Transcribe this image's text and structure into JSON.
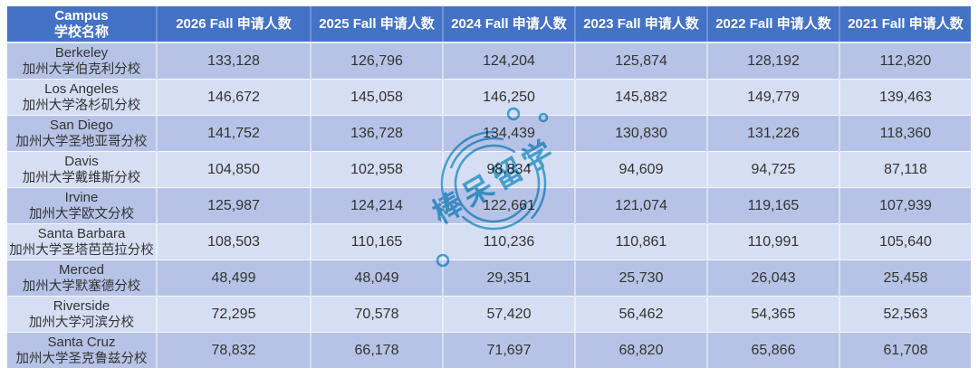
{
  "colors": {
    "header_bg": "#4472C4",
    "header_text": "#FFFFFF",
    "row_odd_bg": "#B6C3E6",
    "row_even_bg": "#D5DEF2",
    "cell_text": "#333333",
    "watermark": "#2BA5CE"
  },
  "watermark": {
    "text": "棒呆留学"
  },
  "chart_data": {
    "type": "table",
    "header": {
      "campus_line1": "Campus",
      "campus_line2": "学校名称",
      "year_columns": [
        "2026 Fall 申请人数",
        "2025 Fall 申请人数",
        "2024 Fall 申请人数",
        "2023 Fall 申请人数",
        "2022 Fall 申请人数",
        "2021 Fall 申请人数"
      ]
    },
    "rows": [
      {
        "campus_en": "Berkeley",
        "campus_zh": "加州大学伯克利分校",
        "values": [
          "133,128",
          "126,796",
          "124,204",
          "125,874",
          "128,192",
          "112,820"
        ]
      },
      {
        "campus_en": "Los Angeles",
        "campus_zh": "加州大学洛杉矶分校",
        "values": [
          "146,672",
          "145,058",
          "146,250",
          "145,882",
          "149,779",
          "139,463"
        ]
      },
      {
        "campus_en": "San Diego",
        "campus_zh": "加州大学圣地亚哥分校",
        "values": [
          "141,752",
          "136,728",
          "134,439",
          "130,830",
          "131,226",
          "118,360"
        ]
      },
      {
        "campus_en": "Davis",
        "campus_zh": "加州大学戴维斯分校",
        "values": [
          "104,850",
          "102,958",
          "98,834",
          "94,609",
          "94,725",
          "87,118"
        ]
      },
      {
        "campus_en": "Irvine",
        "campus_zh": "加州大学欧文分校",
        "values": [
          "125,987",
          "124,214",
          "122,661",
          "121,074",
          "119,165",
          "107,939"
        ]
      },
      {
        "campus_en": "Santa Barbara",
        "campus_zh": "加州大学圣塔芭芭拉分校",
        "values": [
          "108,503",
          "110,165",
          "110,236",
          "110,861",
          "110,991",
          "105,640"
        ]
      },
      {
        "campus_en": "Merced",
        "campus_zh": "加州大学默塞德分校",
        "values": [
          "48,499",
          "48,049",
          "29,351",
          "25,730",
          "26,043",
          "25,458"
        ]
      },
      {
        "campus_en": "Riverside",
        "campus_zh": "加州大学河滨分校",
        "values": [
          "72,295",
          "70,578",
          "57,420",
          "56,462",
          "54,365",
          "52,563"
        ]
      },
      {
        "campus_en": "Santa Cruz",
        "campus_zh": "加州大学圣克鲁兹分校",
        "values": [
          "78,832",
          "66,178",
          "71,697",
          "68,820",
          "65,866",
          "61,708"
        ]
      }
    ]
  }
}
